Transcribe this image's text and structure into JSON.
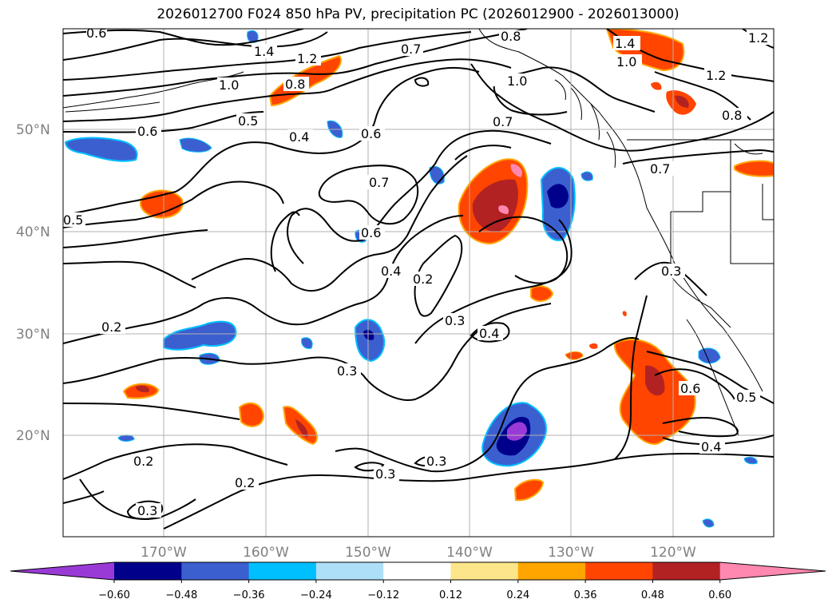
{
  "title": "2026012700 F024 850 hPa PV, precipitation PC (2026012900 - 2026013000)",
  "lat_labels": [
    "50°N",
    "40°N",
    "30°N",
    "20°N"
  ],
  "lon_labels": [
    "170°W",
    "160°W",
    "150°W",
    "140°W",
    "130°W",
    "120°W"
  ],
  "colorbar": {
    "ticks": [
      "−0.60",
      "−0.48",
      "−0.36",
      "−0.24",
      "−0.12",
      "0.12",
      "0.24",
      "0.36",
      "0.48",
      "0.60"
    ],
    "colors": [
      "#9a3ad6",
      "#00008b",
      "#3c5fd0",
      "#00bfff",
      "#ade0f8",
      "#ffffff",
      "#fde58a",
      "#ffa500",
      "#ff4500",
      "#b22222",
      "#ff88b0"
    ]
  },
  "contour_labels": [
    "0.6",
    "0.7",
    "1.4",
    "1.2",
    "1.0",
    "0.8",
    "0.5",
    "0.6",
    "0.4",
    "0.6",
    "0.7",
    "0.5",
    "0.6",
    "0.7",
    "0.4",
    "0.2",
    "0.3",
    "0.4",
    "0.2",
    "0.3",
    "0.2",
    "0.3",
    "0.2",
    "0.3",
    "0.3",
    "0.6",
    "0.5",
    "0.4",
    "0.3",
    "1.0",
    "1.4",
    "1.0",
    "1.2",
    "0.8",
    "0.7",
    "1.2",
    "0.8",
    "0.7"
  ]
}
